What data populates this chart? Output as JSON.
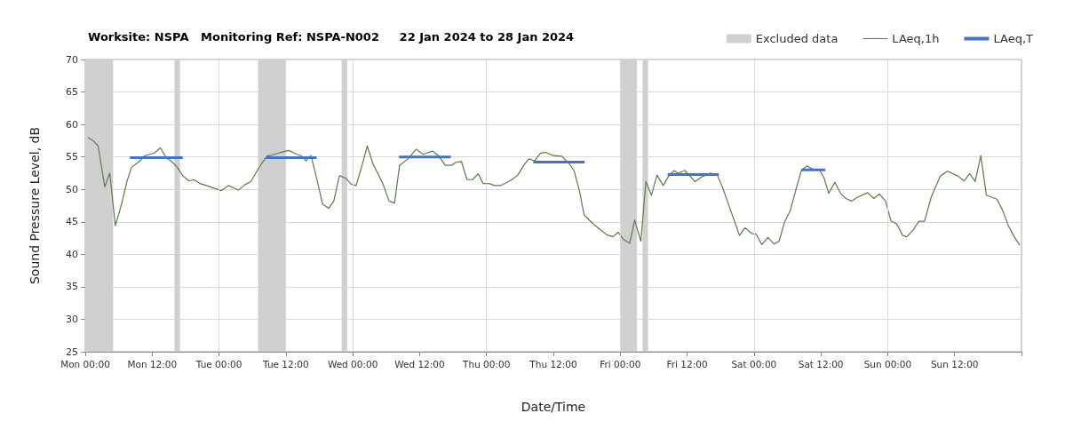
{
  "chart_data": {
    "type": "line",
    "title": "Worksite: NSPA   Monitoring Ref: NSPA-N002     22 Jan 2024 to 28 Jan 2024",
    "xlabel": "Date/Time",
    "ylabel": "Sound Pressure Level, dB",
    "xlim": [
      "2024-01-22T00:00",
      "2024-01-29T00:00"
    ],
    "ylim": [
      25,
      70
    ],
    "xticks": [
      {
        "value": "2024-01-22T00:00",
        "label": "Mon 00:00"
      },
      {
        "value": "2024-01-22T12:00",
        "label": "Mon 12:00"
      },
      {
        "value": "2024-01-23T00:00",
        "label": "Tue 00:00"
      },
      {
        "value": "2024-01-23T12:00",
        "label": "Tue 12:00"
      },
      {
        "value": "2024-01-24T00:00",
        "label": "Wed 00:00"
      },
      {
        "value": "2024-01-24T12:00",
        "label": "Wed 12:00"
      },
      {
        "value": "2024-01-25T00:00",
        "label": "Thu 00:00"
      },
      {
        "value": "2024-01-25T12:00",
        "label": "Thu 12:00"
      },
      {
        "value": "2024-01-26T00:00",
        "label": "Fri 00:00"
      },
      {
        "value": "2024-01-26T12:00",
        "label": "Fri 12:00"
      },
      {
        "value": "2024-01-27T00:00",
        "label": "Sat 00:00"
      },
      {
        "value": "2024-01-27T12:00",
        "label": "Sat 12:00"
      },
      {
        "value": "2024-01-28T00:00",
        "label": "Sun 00:00"
      },
      {
        "value": "2024-01-28T12:00",
        "label": "Sun 12:00"
      },
      {
        "value": "2024-01-29T00:00",
        "label": null
      }
    ],
    "yticks": [
      25,
      30,
      35,
      40,
      45,
      50,
      55,
      60,
      65,
      70
    ],
    "grid": true,
    "legend": "top right",
    "marker": "none",
    "bands": [
      {
        "axis": "x",
        "from": "2024-01-22T00:00",
        "to": "2024-01-22T05:00",
        "label": "Excluded data",
        "color": "#d0d0d0"
      },
      {
        "axis": "x",
        "from": "2024-01-22T16:00",
        "to": "2024-01-22T17:00",
        "color": "#d0d0d0"
      },
      {
        "axis": "x",
        "from": "2024-01-23T07:00",
        "to": "2024-01-23T12:00",
        "color": "#d0d0d0"
      },
      {
        "axis": "x",
        "from": "2024-01-23T22:00",
        "to": "2024-01-23T23:00",
        "color": "#d0d0d0"
      },
      {
        "axis": "x",
        "from": "2024-01-26T00:00",
        "to": "2024-01-26T03:00",
        "color": "#d0d0d0"
      },
      {
        "axis": "x",
        "from": "2024-01-26T04:00",
        "to": "2024-01-26T05:00",
        "color": "#d0d0d0"
      }
    ],
    "series": [
      {
        "name": "LAeq,1h",
        "color": "#5b7b4d",
        "x": [
          "2024-01-22T00:30",
          "2024-01-22T01:24",
          "2024-01-22T02:18",
          "2024-01-22T03:30",
          "2024-01-22T04:24",
          "2024-01-22T05:24",
          "2024-01-22T06:30",
          "2024-01-22T07:30",
          "2024-01-22T08:18",
          "2024-01-22T09:24",
          "2024-01-22T10:42",
          "2024-01-22T12:24",
          "2024-01-22T13:30",
          "2024-01-22T14:30",
          "2024-01-22T15:30",
          "2024-01-22T16:30",
          "2024-01-22T17:30",
          "2024-01-22T18:36",
          "2024-01-22T19:30",
          "2024-01-22T20:36",
          "2024-01-22T22:06",
          "2024-01-23T00:24",
          "2024-01-23T01:42",
          "2024-01-23T03:30",
          "2024-01-23T04:36",
          "2024-01-23T05:42",
          "2024-01-23T06:48",
          "2024-01-23T07:36",
          "2024-01-23T08:36",
          "2024-01-23T10:00",
          "2024-01-23T11:06",
          "2024-01-23T12:30",
          "2024-01-23T13:42",
          "2024-01-23T14:42",
          "2024-01-23T15:36",
          "2024-01-23T16:30",
          "2024-01-23T17:18",
          "2024-01-23T18:36",
          "2024-01-23T19:42",
          "2024-01-23T20:36",
          "2024-01-23T21:36",
          "2024-01-23T22:48",
          "2024-01-23T23:42",
          "2024-01-24T00:36",
          "2024-01-24T01:42",
          "2024-01-24T02:36",
          "2024-01-24T03:36",
          "2024-01-24T05:24",
          "2024-01-24T06:30",
          "2024-01-24T07:30",
          "2024-01-24T08:24",
          "2024-01-24T09:54",
          "2024-01-24T11:24",
          "2024-01-24T12:36",
          "2024-01-24T14:18",
          "2024-01-24T15:24",
          "2024-01-24T16:36",
          "2024-01-24T17:42",
          "2024-01-24T18:36",
          "2024-01-24T19:30",
          "2024-01-24T20:30",
          "2024-01-24T21:30",
          "2024-01-24T22:30",
          "2024-01-24T23:24",
          "2024-01-25T00:30",
          "2024-01-25T01:24",
          "2024-01-25T02:36",
          "2024-01-25T04:24",
          "2024-01-25T05:36",
          "2024-01-25T06:42",
          "2024-01-25T07:36",
          "2024-01-25T08:36",
          "2024-01-25T09:42",
          "2024-01-25T10:36",
          "2024-01-25T12:00",
          "2024-01-25T13:30",
          "2024-01-25T14:48",
          "2024-01-25T15:42",
          "2024-01-25T16:42",
          "2024-01-25T17:30",
          "2024-01-25T19:00",
          "2024-01-25T20:24",
          "2024-01-25T21:36",
          "2024-01-25T22:42",
          "2024-01-25T23:36",
          "2024-01-26T00:36",
          "2024-01-26T01:42",
          "2024-01-26T02:36",
          "2024-01-26T03:42",
          "2024-01-26T04:36",
          "2024-01-26T05:36",
          "2024-01-26T06:36",
          "2024-01-26T07:42",
          "2024-01-26T08:48",
          "2024-01-26T09:42",
          "2024-01-26T10:18",
          "2024-01-26T11:36",
          "2024-01-26T13:24",
          "2024-01-26T14:48",
          "2024-01-26T16:06",
          "2024-01-26T17:24",
          "2024-01-26T18:24",
          "2024-01-26T19:48",
          "2024-01-26T21:24",
          "2024-01-26T22:24",
          "2024-01-26T23:36",
          "2024-01-27T00:24",
          "2024-01-27T01:24",
          "2024-01-27T02:30",
          "2024-01-27T03:36",
          "2024-01-27T04:30",
          "2024-01-27T05:30",
          "2024-01-27T06:30",
          "2024-01-27T07:36",
          "2024-01-27T08:30",
          "2024-01-27T09:30",
          "2024-01-27T10:48",
          "2024-01-27T11:42",
          "2024-01-27T12:36",
          "2024-01-27T13:24",
          "2024-01-27T14:30",
          "2024-01-27T15:36",
          "2024-01-27T16:30",
          "2024-01-27T17:30",
          "2024-01-27T18:36",
          "2024-01-27T20:24",
          "2024-01-27T21:30",
          "2024-01-27T22:30",
          "2024-01-27T23:36",
          "2024-01-28T00:36",
          "2024-01-28T01:36",
          "2024-01-28T02:42",
          "2024-01-28T03:24",
          "2024-01-28T04:36",
          "2024-01-28T05:36",
          "2024-01-28T06:36",
          "2024-01-28T07:48",
          "2024-01-28T09:24",
          "2024-01-28T10:42",
          "2024-01-28T12:30",
          "2024-01-28T13:42",
          "2024-01-28T14:42",
          "2024-01-28T15:42",
          "2024-01-28T16:42",
          "2024-01-28T17:42",
          "2024-01-28T19:36",
          "2024-01-28T20:36",
          "2024-01-28T21:42",
          "2024-01-28T22:42",
          "2024-01-28T23:42"
        ],
        "values": [
          58.0,
          57.5,
          56.7,
          50.4,
          52.5,
          44.4,
          47.7,
          51.3,
          53.4,
          54.1,
          55.2,
          55.6,
          56.4,
          54.9,
          54.3,
          53.4,
          52.1,
          51.3,
          51.5,
          50.9,
          50.5,
          49.8,
          50.6,
          49.9,
          50.7,
          51.2,
          52.8,
          53.9,
          55.1,
          55.4,
          55.7,
          56.0,
          55.5,
          55.2,
          54.4,
          55.2,
          52.5,
          47.7,
          47.1,
          48.2,
          52.1,
          51.7,
          50.8,
          50.6,
          53.8,
          56.7,
          54.0,
          50.9,
          48.2,
          47.9,
          53.7,
          54.7,
          56.2,
          55.4,
          55.9,
          55.2,
          53.7,
          53.7,
          54.2,
          54.3,
          51.5,
          51.5,
          52.4,
          50.9,
          50.9,
          50.6,
          50.6,
          51.4,
          52.2,
          53.7,
          54.7,
          54.4,
          55.6,
          55.7,
          55.2,
          55.1,
          54.0,
          52.9,
          49.7,
          46.1,
          44.8,
          43.8,
          43.0,
          42.7,
          43.4,
          42.3,
          41.7,
          45.3,
          42.0,
          51.2,
          49.1,
          52.2,
          50.6,
          52.2,
          52.9,
          52.5,
          52.9,
          51.2,
          52.0,
          52.5,
          52.2,
          50.2,
          46.8,
          42.9,
          44.1,
          43.2,
          43.1,
          41.5,
          42.6,
          41.6,
          42.0,
          45.0,
          46.7,
          50.2,
          52.9,
          53.6,
          53.0,
          53.1,
          51.7,
          49.4,
          51.1,
          49.3,
          48.6,
          48.2,
          48.8,
          49.5,
          48.6,
          49.3,
          48.2,
          45.1,
          44.7,
          42.9,
          42.7,
          43.8,
          45.1,
          45.1,
          48.8,
          52.0,
          52.8,
          52.1,
          51.3,
          52.4,
          51.2,
          55.2,
          49.1,
          48.5,
          46.8,
          44.3,
          42.7,
          41.4
        ]
      },
      {
        "name": "LAeq,T",
        "color": "#4472c4",
        "x": [
          "2024-01-22T08:00",
          "2024-01-22T17:30"
        ],
        "values": [
          54.9,
          54.9
        ]
      },
      {
        "color": "#4472c4",
        "x": [
          "2024-01-23T08:24",
          "2024-01-23T17:30"
        ],
        "values": [
          54.9,
          54.9
        ]
      },
      {
        "color": "#4472c4",
        "x": [
          "2024-01-24T08:18",
          "2024-01-24T17:36"
        ],
        "values": [
          55.0,
          55.0
        ]
      },
      {
        "color": "#4472c4",
        "x": [
          "2024-01-25T08:24",
          "2024-01-25T17:36"
        ],
        "values": [
          54.2,
          54.2
        ]
      },
      {
        "color": "#4472c4",
        "x": [
          "2024-01-26T08:30",
          "2024-01-26T17:42"
        ],
        "values": [
          52.3,
          52.3
        ]
      },
      {
        "color": "#4472c4",
        "x": [
          "2024-01-27T08:30",
          "2024-01-27T12:48"
        ],
        "values": [
          53.0,
          53.0
        ]
      }
    ]
  }
}
